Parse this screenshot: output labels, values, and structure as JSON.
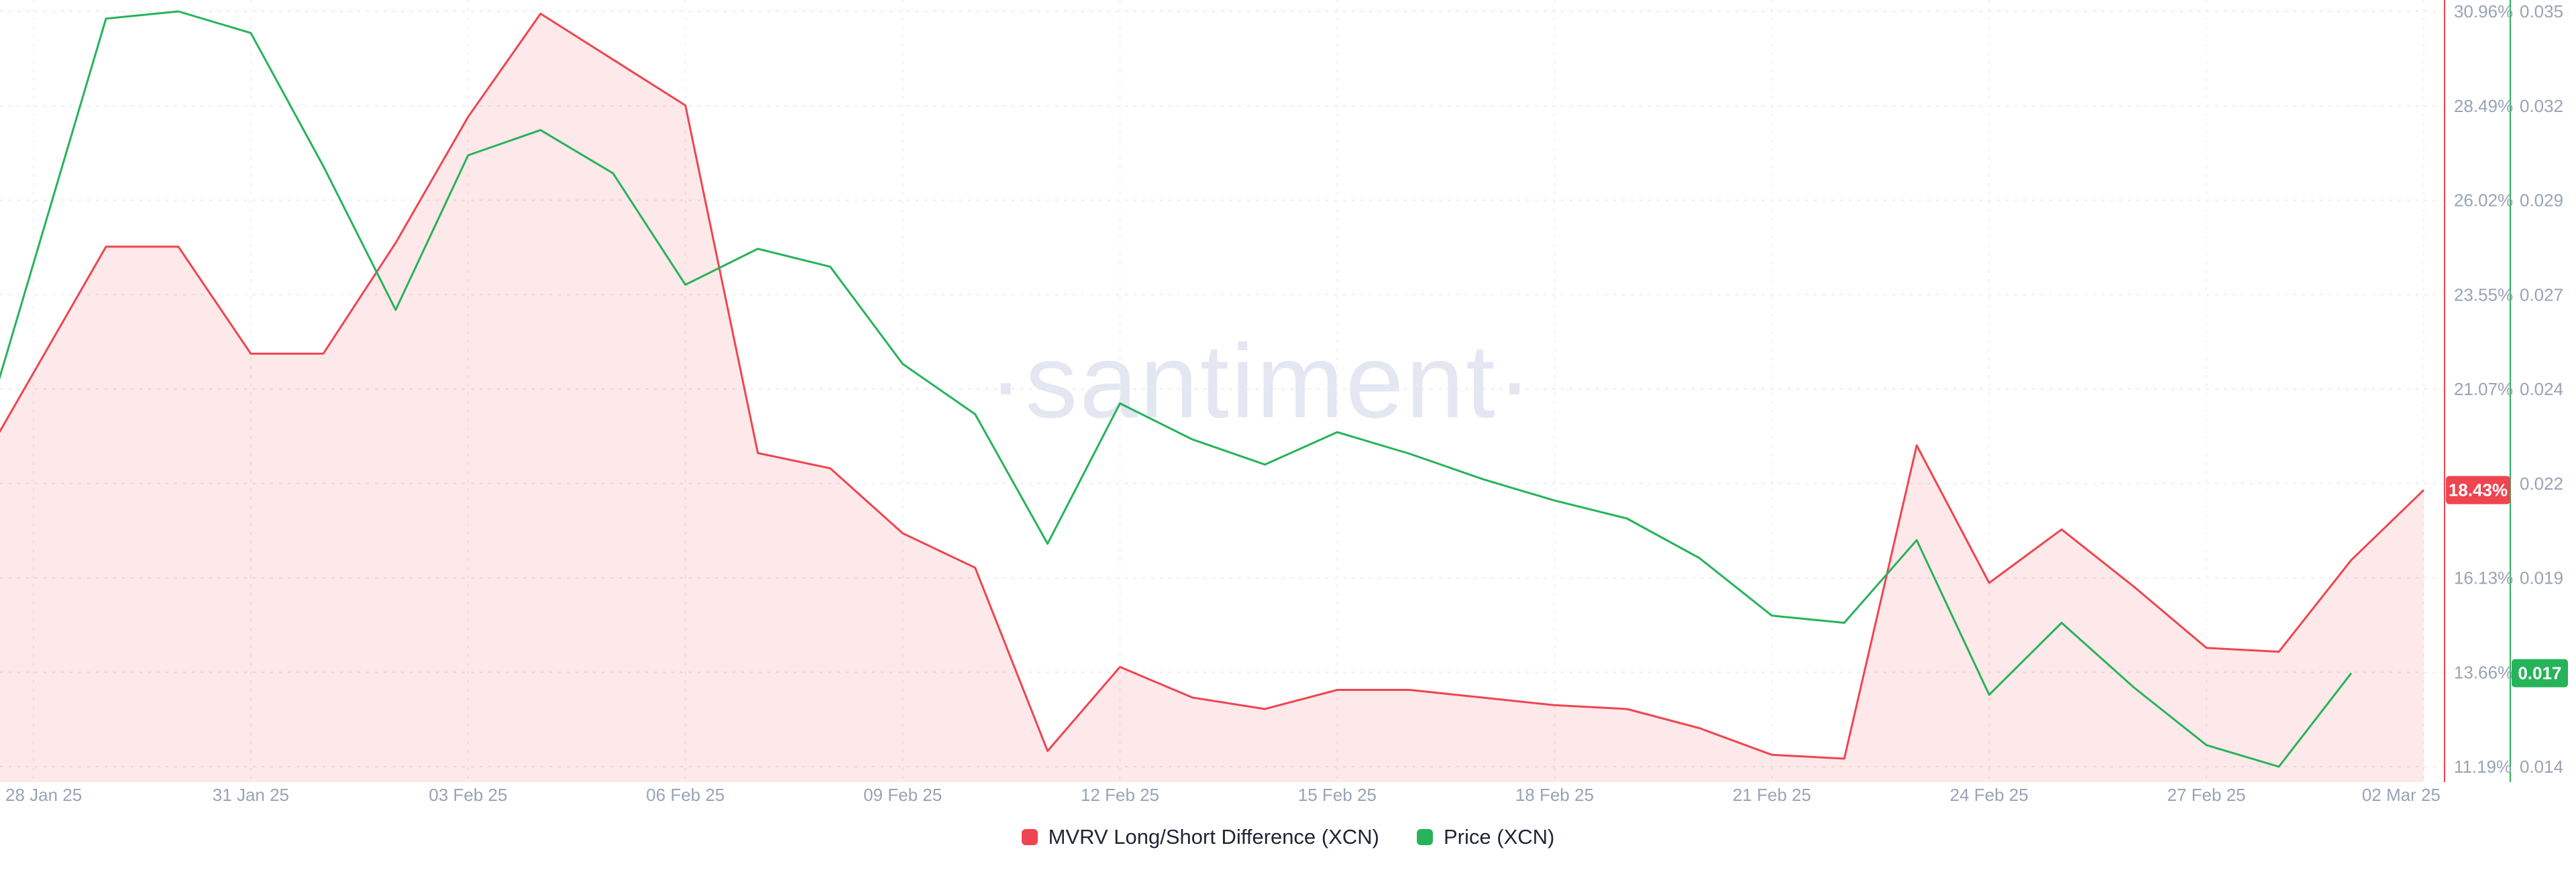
{
  "watermark": "·santiment·",
  "legend": [
    {
      "label": "MVRV Long/Short Difference (XCN)",
      "color": "#ee4550"
    },
    {
      "label": "Price (XCN)",
      "color": "#26b35a"
    }
  ],
  "chart_data": {
    "type": "area",
    "title": "",
    "grid": true,
    "legend_position": "bottom-center",
    "x": [
      "28 Jan 25",
      "29 Jan 25",
      "30 Jan 25",
      "31 Jan 25",
      "01 Feb 25",
      "02 Feb 25",
      "03 Feb 25",
      "04 Feb 25",
      "05 Feb 25",
      "06 Feb 25",
      "07 Feb 25",
      "08 Feb 25",
      "09 Feb 25",
      "10 Feb 25",
      "11 Feb 25",
      "12 Feb 25",
      "13 Feb 25",
      "14 Feb 25",
      "15 Feb 25",
      "16 Feb 25",
      "17 Feb 25",
      "18 Feb 25",
      "19 Feb 25",
      "20 Feb 25",
      "21 Feb 25",
      "22 Feb 25",
      "23 Feb 25",
      "24 Feb 25",
      "25 Feb 25",
      "26 Feb 25",
      "27 Feb 25",
      "28 Feb 25",
      "01 Mar 25",
      "02 Mar 25"
    ],
    "x_tick_indices": [
      0,
      3,
      6,
      9,
      12,
      15,
      18,
      21,
      24,
      27,
      30,
      33
    ],
    "series": [
      {
        "name": "MVRV Long/Short Difference (XCN)",
        "axis": "percent",
        "style": "area",
        "color": "#ee4550",
        "fill": "rgba(238,69,80,0.12)",
        "values": [
          21.5,
          24.8,
          24.8,
          22.0,
          22.0,
          24.9,
          28.2,
          30.9,
          29.7,
          28.5,
          19.4,
          19.0,
          17.3,
          16.4,
          11.6,
          13.8,
          13.0,
          12.7,
          13.2,
          13.2,
          13.0,
          12.8,
          12.7,
          12.2,
          11.5,
          11.4,
          19.6,
          16.0,
          17.4,
          15.9,
          14.3,
          14.2,
          16.6,
          18.43
        ]
      },
      {
        "name": "Price (XCN)",
        "axis": "price",
        "style": "line",
        "color": "#26b35a",
        "values": [
          0.028,
          0.0348,
          0.035,
          0.0344,
          0.0307,
          0.0267,
          0.031,
          0.0317,
          0.0305,
          0.0274,
          0.0284,
          0.0279,
          0.0252,
          0.0238,
          0.0202,
          0.0241,
          0.0231,
          0.0224,
          0.0233,
          0.0227,
          0.022,
          0.0214,
          0.0209,
          0.0198,
          0.0182,
          0.018,
          0.0203,
          0.016,
          0.018,
          0.0162,
          0.0146,
          0.014,
          0.0166,
          null
        ]
      }
    ],
    "axes": {
      "percent": {
        "side": "right-inner",
        "min": 11.19,
        "max": 30.96,
        "color": "#ee4550",
        "tick_labels": [
          "30.96%",
          "28.49%",
          "26.02%",
          "23.55%",
          "21.07%",
          null,
          "16.13%",
          "13.66%",
          "11.19%"
        ],
        "badge": {
          "label": "18.43%",
          "v": 18.43
        }
      },
      "price": {
        "side": "right-outer",
        "min": 0.014,
        "max": 0.035,
        "color": "#26b35a",
        "tick_labels": [
          "0.035",
          "0.032",
          "0.029",
          "0.027",
          "0.024",
          "0.022",
          "0.019",
          null,
          "0.014"
        ],
        "badge": {
          "label": "0.017",
          "v": 0.0166
        }
      }
    }
  }
}
